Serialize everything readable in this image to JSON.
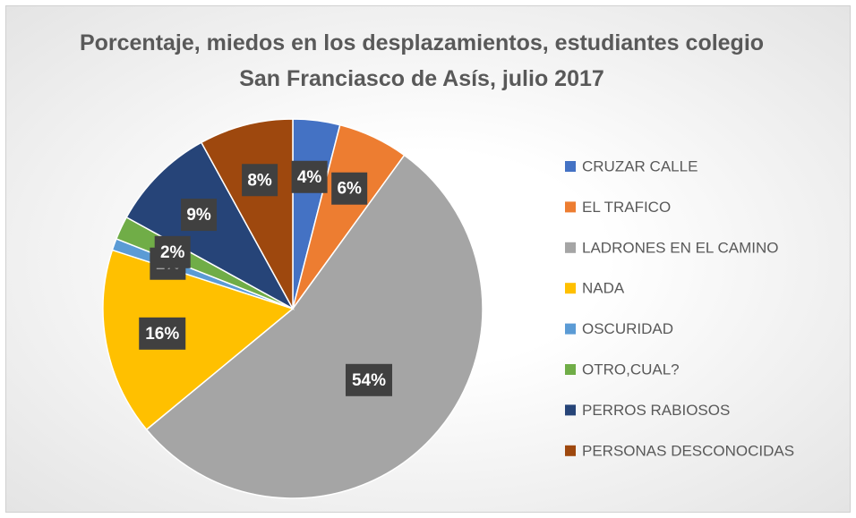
{
  "chart_data": {
    "type": "pie",
    "title": "Porcentaje, miedos en los desplazamientos, estudiantes colegio San Franciasco de Asís, julio 2017",
    "categories": [
      "CRUZAR CALLE",
      "EL TRAFICO",
      "LADRONES EN EL CAMINO",
      "NADA",
      "OSCURIDAD",
      "OTRO,CUAL?",
      "PERROS RABIOSOS",
      "PERSONAS DESCONOCIDAS"
    ],
    "values": [
      4,
      6,
      54,
      16,
      1,
      2,
      9,
      8
    ],
    "value_labels": [
      "4%",
      "6%",
      "54%",
      "16%",
      "1%",
      "2%",
      "9%",
      "8%"
    ],
    "colors": [
      "#4472c4",
      "#ed7d31",
      "#a5a5a5",
      "#ffc000",
      "#5b9bd5",
      "#70ad47",
      "#264478",
      "#9e480e"
    ],
    "legend": "right"
  }
}
